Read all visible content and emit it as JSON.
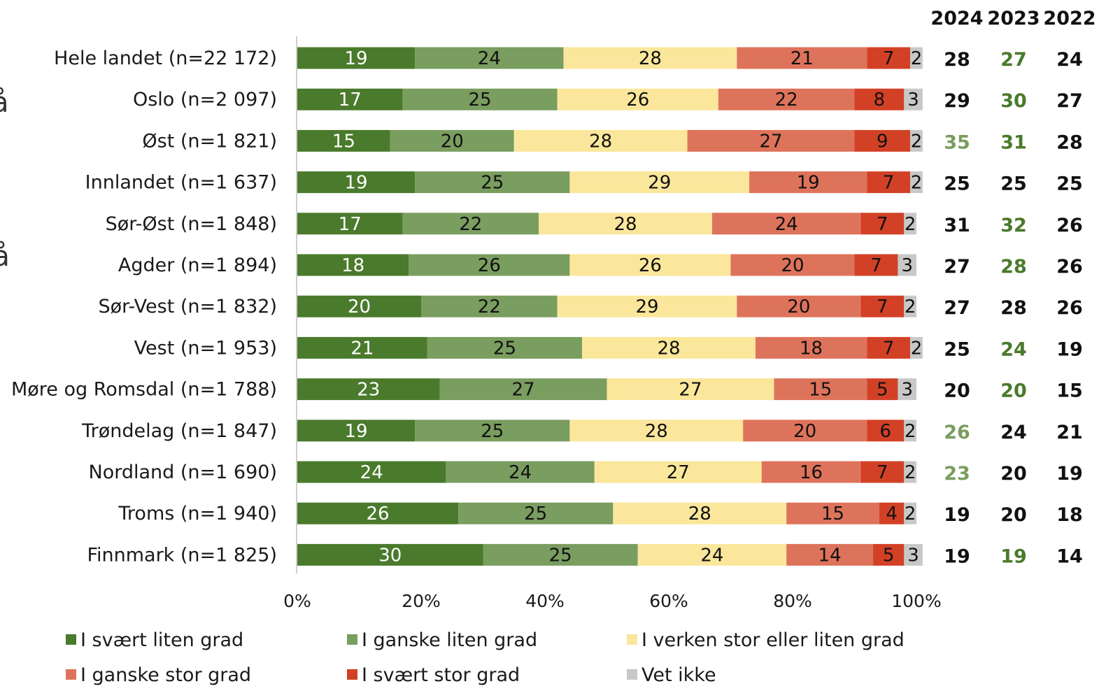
{
  "chart_data": {
    "type": "bar",
    "orientation": "horizontal",
    "stacked": "percent",
    "categories": [
      "Hele landet (n=22 172)",
      "Oslo (n=2 097)",
      "Øst (n=1 821)",
      "Innlandet (n=1 637)",
      "Sør-Øst (n=1 848)",
      "Agder (n=1 894)",
      "Sør-Vest (n=1 832)",
      "Vest (n=1 953)",
      "Møre og Romsdal (n=1 788)",
      "Trøndelag (n=1 847)",
      "Nordland (n=1 690)",
      "Troms (n=1 940)",
      "Finnmark (n=1 825)"
    ],
    "series": [
      {
        "name": "I svært liten grad",
        "color": "#4a7a2c",
        "label_color": "#ffffff",
        "values": [
          19,
          17,
          15,
          19,
          17,
          18,
          20,
          21,
          23,
          19,
          24,
          26,
          30
        ]
      },
      {
        "name": "I ganske liten grad",
        "color": "#7a9d60",
        "label_color": "#111111",
        "values": [
          24,
          25,
          20,
          25,
          22,
          26,
          22,
          25,
          27,
          25,
          24,
          25,
          25
        ]
      },
      {
        "name": "I verken stor eller liten grad",
        "color": "#fbe79b",
        "label_color": "#111111",
        "values": [
          28,
          26,
          28,
          29,
          28,
          26,
          29,
          28,
          27,
          28,
          27,
          28,
          24
        ]
      },
      {
        "name": "I ganske stor grad",
        "color": "#de735b",
        "label_color": "#111111",
        "values": [
          21,
          22,
          27,
          19,
          24,
          20,
          20,
          18,
          15,
          20,
          16,
          15,
          14
        ]
      },
      {
        "name": "I svært stor grad",
        "color": "#d24126",
        "label_color": "#111111",
        "values": [
          7,
          8,
          9,
          7,
          7,
          7,
          7,
          7,
          5,
          6,
          7,
          4,
          5
        ]
      },
      {
        "name": "Vet ikke",
        "color": "#c8c8c8",
        "label_color": "#111111",
        "values": [
          2,
          3,
          2,
          2,
          2,
          3,
          2,
          2,
          3,
          2,
          2,
          2,
          3
        ]
      }
    ],
    "xlim": [
      0,
      100
    ],
    "x_ticks": [
      "0%",
      "20%",
      "40%",
      "60%",
      "80%",
      "100%"
    ],
    "legend_position": "bottom",
    "grid": false,
    "year_columns": {
      "headers": [
        "2024",
        "2023",
        "2022"
      ],
      "values": [
        [
          28,
          27,
          24
        ],
        [
          29,
          30,
          27
        ],
        [
          35,
          31,
          28
        ],
        [
          25,
          25,
          25
        ],
        [
          31,
          32,
          26
        ],
        [
          27,
          28,
          26
        ],
        [
          27,
          28,
          26
        ],
        [
          25,
          24,
          19
        ],
        [
          20,
          20,
          15
        ],
        [
          26,
          24,
          21
        ],
        [
          23,
          20,
          19
        ],
        [
          19,
          20,
          18
        ],
        [
          19,
          19,
          14
        ]
      ],
      "colors": [
        [
          "#111111",
          "#4a7a2c",
          "#111111"
        ],
        [
          "#111111",
          "#4a7a2c",
          "#111111"
        ],
        [
          "#7a9d60",
          "#4a7a2c",
          "#111111"
        ],
        [
          "#111111",
          "#111111",
          "#111111"
        ],
        [
          "#111111",
          "#4a7a2c",
          "#111111"
        ],
        [
          "#111111",
          "#4a7a2c",
          "#111111"
        ],
        [
          "#111111",
          "#111111",
          "#111111"
        ],
        [
          "#111111",
          "#4a7a2c",
          "#111111"
        ],
        [
          "#111111",
          "#4a7a2c",
          "#111111"
        ],
        [
          "#7a9d60",
          "#111111",
          "#111111"
        ],
        [
          "#7a9d60",
          "#111111",
          "#111111"
        ],
        [
          "#111111",
          "#111111",
          "#111111"
        ],
        [
          "#111111",
          "#4a7a2c",
          "#111111"
        ]
      ]
    }
  },
  "edge_fragments": [
    "å",
    "på"
  ]
}
